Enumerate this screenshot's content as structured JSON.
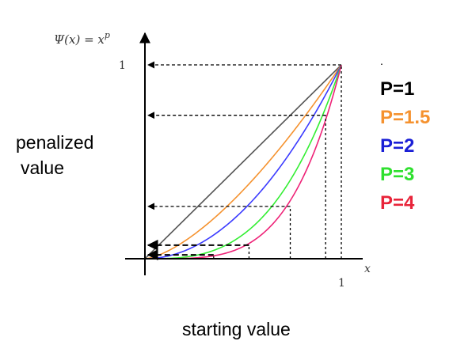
{
  "chart_data": {
    "type": "line",
    "title": "Ψ(x) = x^p",
    "title_parts": {
      "lhs": "Ψ(x) = x",
      "exp": "p"
    },
    "xlabel": "starting value",
    "ylabel": "penalized value",
    "x_axis_symbol": "x",
    "xlim": [
      0,
      1.15
    ],
    "ylim": [
      0,
      1.0
    ],
    "x_tick_labels": [
      "1"
    ],
    "y_tick_labels": [
      "1"
    ],
    "grid": false,
    "legend_position": "right",
    "series": [
      {
        "name": "P=1",
        "p": 1,
        "color": "#000000",
        "line_color": "#555555"
      },
      {
        "name": "P=1.5",
        "p": 1.5,
        "color": "#f5922f",
        "line_color": "#f5922f"
      },
      {
        "name": "P=2",
        "p": 2,
        "color": "#1a1fd6",
        "line_color": "#3a3aff"
      },
      {
        "name": "P=3",
        "p": 3,
        "color": "#2fe02f",
        "line_color": "#33ee33"
      },
      {
        "name": "P=4",
        "p": 4,
        "color": "#e8243a",
        "line_color": "#ee2277"
      }
    ],
    "guide_lines": [
      {
        "x": 1.0,
        "y": 1.0
      },
      {
        "x": 0.92,
        "y": 0.74
      },
      {
        "x": 0.74,
        "y": 0.27
      },
      {
        "x": 0.53,
        "y": 0.07
      },
      {
        "x": 0.35,
        "y": 0.02
      }
    ],
    "legend_dot": "."
  }
}
